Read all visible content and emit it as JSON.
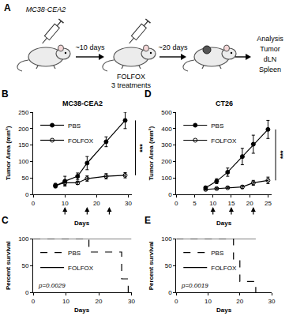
{
  "schematic": {
    "panel": "A",
    "injection": "MC38-CEA2",
    "intervals": [
      "~10 days",
      "~20 days"
    ],
    "treatment": [
      "FOLFOX",
      "3 treatments"
    ],
    "analysis": [
      "Analysis",
      "Tumor",
      "dLN",
      "Spleen"
    ]
  },
  "chart_data": [
    {
      "panel": "B",
      "type": "line",
      "title": "MC38-CEA2",
      "x_label": "Days",
      "y_label": "Tumor Area (mm²)",
      "xlim": [
        0,
        31
      ],
      "xticks": [
        0,
        10,
        20,
        30
      ],
      "ylim": [
        0,
        250
      ],
      "yticks": [
        0,
        50,
        100,
        150,
        200,
        250
      ],
      "grid": false,
      "legend": "upper left",
      "annotations": [
        "***"
      ],
      "treatment_days": [
        10,
        17,
        24
      ],
      "series": [
        {
          "name": "PBS",
          "color": "#000000",
          "marker": "circle",
          "x": [
            7,
            10,
            14,
            17,
            23,
            29
          ],
          "values": [
            25,
            40,
            55,
            95,
            160,
            225
          ],
          "errors": [
            5,
            15,
            10,
            20,
            15,
            25
          ]
        },
        {
          "name": "FOLFOX",
          "color": "#000000",
          "marker": "circle-open",
          "x": [
            7,
            10,
            14,
            17,
            23,
            29
          ],
          "values": [
            28,
            35,
            35,
            48,
            55,
            58
          ],
          "errors": [
            5,
            8,
            5,
            8,
            8,
            8
          ]
        }
      ]
    },
    {
      "panel": "C",
      "type": "step",
      "x_label": "Days",
      "y_label": "Percent survival",
      "xlim": [
        0,
        30
      ],
      "xticks": [
        0,
        10,
        20,
        30
      ],
      "ylim": [
        0,
        100
      ],
      "yticks": [
        0,
        50,
        100
      ],
      "grid": false,
      "legend": "center left",
      "annotations": [
        "p=0.0029"
      ],
      "series": [
        {
          "name": "PBS",
          "color": "#000000",
          "line_style": "dashed",
          "x": [
            0,
            17,
            27,
            29
          ],
          "values": [
            100,
            75,
            25,
            0
          ]
        },
        {
          "name": "FOLFOX",
          "color": "#000000",
          "line_style": "solid",
          "x": [
            0,
            30
          ],
          "values": [
            100,
            100
          ]
        }
      ]
    },
    {
      "panel": "D",
      "type": "line",
      "title": "CT26",
      "x_label": "Days",
      "y_label": "Tumor Area (mm²)",
      "xlim": [
        0,
        26
      ],
      "xticks": [
        0,
        5,
        10,
        15,
        20,
        25
      ],
      "ylim": [
        0,
        500
      ],
      "yticks": [
        0,
        100,
        200,
        300,
        400,
        500
      ],
      "grid": false,
      "legend": "upper left",
      "annotations": [
        "***"
      ],
      "treatment_days": [
        10,
        15,
        21
      ],
      "series": [
        {
          "name": "PBS",
          "color": "#000000",
          "marker": "circle",
          "x": [
            8,
            11,
            14,
            18,
            21,
            25
          ],
          "values": [
            40,
            80,
            135,
            230,
            305,
            395
          ],
          "errors": [
            10,
            15,
            25,
            50,
            55,
            55
          ]
        },
        {
          "name": "FOLFOX",
          "color": "#000000",
          "marker": "circle-open",
          "x": [
            8,
            11,
            14,
            18,
            21,
            25
          ],
          "values": [
            30,
            35,
            40,
            45,
            70,
            85
          ],
          "errors": [
            5,
            5,
            5,
            10,
            15,
            20
          ]
        }
      ]
    },
    {
      "panel": "E",
      "type": "step",
      "x_label": "Days",
      "y_label": "Percent survival",
      "xlim": [
        0,
        30
      ],
      "xticks": [
        0,
        10,
        20,
        30
      ],
      "ylim": [
        0,
        100
      ],
      "yticks": [
        0,
        50,
        100
      ],
      "grid": false,
      "legend": "center left",
      "annotations": [
        "p=0.0019"
      ],
      "series": [
        {
          "name": "PBS",
          "color": "#000000",
          "line_style": "dashed",
          "x": [
            0,
            18,
            20,
            25
          ],
          "values": [
            100,
            60,
            20,
            0
          ]
        },
        {
          "name": "FOLFOX",
          "color": "#000000",
          "line_style": "solid",
          "x": [
            0,
            25
          ],
          "values": [
            100,
            100
          ]
        }
      ]
    }
  ]
}
